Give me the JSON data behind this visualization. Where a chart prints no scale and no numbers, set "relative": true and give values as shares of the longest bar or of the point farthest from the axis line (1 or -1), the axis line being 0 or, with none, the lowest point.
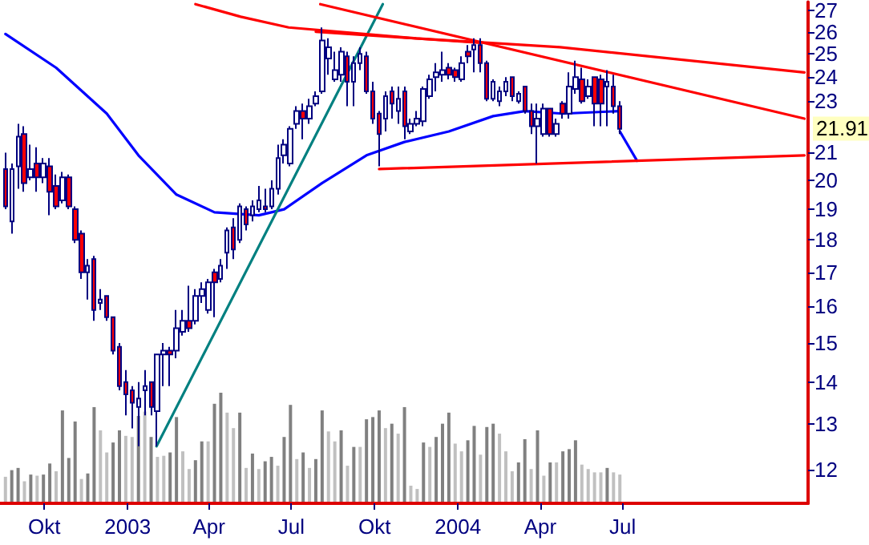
{
  "chart_data": [
    {
      "type": "candlestick",
      "log": true,
      "grid": false,
      "x": [
        "2002-08-19",
        "2002-08-26",
        "2002-09-02",
        "2002-09-09",
        "2002-09-16",
        "2002-09-23",
        "2002-09-30",
        "2002-10-07",
        "2002-10-14",
        "2002-10-21",
        "2002-10-28",
        "2002-11-04",
        "2002-11-11",
        "2002-11-18",
        "2002-11-25",
        "2002-12-02",
        "2002-12-09",
        "2002-12-16",
        "2002-12-23",
        "2002-12-30",
        "2003-01-06",
        "2003-01-13",
        "2003-01-20",
        "2003-01-27",
        "2003-02-03",
        "2003-02-10",
        "2003-02-17",
        "2003-02-24",
        "2003-03-03",
        "2003-03-10",
        "2003-03-17",
        "2003-03-24",
        "2003-03-31",
        "2003-04-07",
        "2003-04-14",
        "2003-04-21",
        "2003-04-28",
        "2003-05-05",
        "2003-05-12",
        "2003-05-19",
        "2003-05-26",
        "2003-06-02",
        "2003-06-09",
        "2003-06-16",
        "2003-06-23",
        "2003-06-30",
        "2003-07-07",
        "2003-07-14",
        "2003-07-21",
        "2003-07-28",
        "2003-08-04",
        "2003-08-11",
        "2003-08-18",
        "2003-08-25",
        "2003-09-01",
        "2003-09-08",
        "2003-09-15",
        "2003-09-22",
        "2003-09-29",
        "2003-10-06",
        "2003-10-13",
        "2003-10-20",
        "2003-10-27",
        "2003-11-03",
        "2003-11-10",
        "2003-11-17",
        "2003-11-24",
        "2003-12-01",
        "2003-12-08",
        "2003-12-15",
        "2003-12-22",
        "2003-12-29",
        "2004-01-05",
        "2004-01-12",
        "2004-01-19",
        "2004-01-26",
        "2004-02-02",
        "2004-02-09",
        "2004-02-16",
        "2004-02-23",
        "2004-03-01",
        "2004-03-08",
        "2004-03-15",
        "2004-03-22",
        "2004-03-29",
        "2004-04-05",
        "2004-04-12",
        "2004-04-19",
        "2004-04-26",
        "2004-05-03",
        "2004-05-10",
        "2004-05-17",
        "2004-05-24",
        "2004-05-31",
        "2004-06-07",
        "2004-06-14",
        "2004-06-21",
        "2004-06-28"
      ],
      "ohlc": [
        [
          20.4,
          21.0,
          19.0,
          19.1
        ],
        [
          18.6,
          20.6,
          18.2,
          20.4
        ],
        [
          20.5,
          22.1,
          19.7,
          21.6
        ],
        [
          21.7,
          22.0,
          19.6,
          19.9
        ],
        [
          20.1,
          21.3,
          20.0,
          20.4
        ],
        [
          20.6,
          21.2,
          19.6,
          20.1
        ],
        [
          20.1,
          20.8,
          19.9,
          20.6
        ],
        [
          20.5,
          20.8,
          18.8,
          19.6
        ],
        [
          19.8,
          20.2,
          19.0,
          19.1
        ],
        [
          19.3,
          20.3,
          19.2,
          20.1
        ],
        [
          20.1,
          20.2,
          19.0,
          19.1
        ],
        [
          19.0,
          19.1,
          17.9,
          18.0
        ],
        [
          18.2,
          18.3,
          16.8,
          17.0
        ],
        [
          17.0,
          17.4,
          16.2,
          17.2
        ],
        [
          17.4,
          17.5,
          15.6,
          15.9
        ],
        [
          16.1,
          16.5,
          15.9,
          16.2
        ],
        [
          16.3,
          16.3,
          15.6,
          15.7
        ],
        [
          15.7,
          15.7,
          14.7,
          14.8
        ],
        [
          14.9,
          15.0,
          13.8,
          13.9
        ],
        [
          14.0,
          14.3,
          13.2,
          13.7
        ],
        [
          13.8,
          13.9,
          12.9,
          13.5
        ],
        [
          13.4,
          14.0,
          12.5,
          13.6
        ],
        [
          13.8,
          14.3,
          13.2,
          13.9
        ],
        [
          14.0,
          14.0,
          13.2,
          13.4
        ],
        [
          13.3,
          14.7,
          12.5,
          14.7
        ],
        [
          14.7,
          15.0,
          13.9,
          14.8
        ],
        [
          14.8,
          14.9,
          13.9,
          14.7
        ],
        [
          14.8,
          15.9,
          14.6,
          15.4
        ],
        [
          15.3,
          15.9,
          15.2,
          15.6
        ],
        [
          15.6,
          16.6,
          15.3,
          15.4
        ],
        [
          15.6,
          16.5,
          15.5,
          16.3
        ],
        [
          16.3,
          16.7,
          16.1,
          16.5
        ],
        [
          15.9,
          16.8,
          15.8,
          16.7
        ],
        [
          17.0,
          17.1,
          15.7,
          16.7
        ],
        [
          16.8,
          17.4,
          16.7,
          17.2
        ],
        [
          17.6,
          18.4,
          17.1,
          18.3
        ],
        [
          18.4,
          18.7,
          17.4,
          17.7
        ],
        [
          18.0,
          19.2,
          17.9,
          19.1
        ],
        [
          19.0,
          19.1,
          18.3,
          18.5
        ],
        [
          18.8,
          19.3,
          18.6,
          19.1
        ],
        [
          19.0,
          19.8,
          18.9,
          19.3
        ],
        [
          19.1,
          19.7,
          18.9,
          19.0
        ],
        [
          19.1,
          20.0,
          19.0,
          19.7
        ],
        [
          19.7,
          21.3,
          19.5,
          20.8
        ],
        [
          20.9,
          21.5,
          20.6,
          21.3
        ],
        [
          20.6,
          22.0,
          20.5,
          21.9
        ],
        [
          22.1,
          22.8,
          21.9,
          22.6
        ],
        [
          22.6,
          22.9,
          21.5,
          22.3
        ],
        [
          22.3,
          23.1,
          22.1,
          22.8
        ],
        [
          22.9,
          23.4,
          22.8,
          23.2
        ],
        [
          23.4,
          26.2,
          23.3,
          25.6
        ],
        [
          24.8,
          25.7,
          24.1,
          25.3
        ],
        [
          23.9,
          25.1,
          23.8,
          24.3
        ],
        [
          24.1,
          25.3,
          23.8,
          25.1
        ],
        [
          24.9,
          25.1,
          22.8,
          23.8
        ],
        [
          23.8,
          24.9,
          22.8,
          24.6
        ],
        [
          24.6,
          25.3,
          24.3,
          25.0
        ],
        [
          24.9,
          25.1,
          23.3,
          23.4
        ],
        [
          23.4,
          23.8,
          22.1,
          22.3
        ],
        [
          22.5,
          22.6,
          20.5,
          21.7
        ],
        [
          22.3,
          23.4,
          21.8,
          23.2
        ],
        [
          23.4,
          23.6,
          22.3,
          22.9
        ],
        [
          22.6,
          23.6,
          22.1,
          23.1
        ],
        [
          23.4,
          23.6,
          21.5,
          22.0
        ],
        [
          21.8,
          22.3,
          21.7,
          22.1
        ],
        [
          22.1,
          22.6,
          22.0,
          22.3
        ],
        [
          22.2,
          23.6,
          22.0,
          23.5
        ],
        [
          23.2,
          24.1,
          23.1,
          23.9
        ],
        [
          24.0,
          24.6,
          23.4,
          24.2
        ],
        [
          24.1,
          25.1,
          23.8,
          24.3
        ],
        [
          24.4,
          24.6,
          23.9,
          24.1
        ],
        [
          24.3,
          24.4,
          23.8,
          24.0
        ],
        [
          23.9,
          24.9,
          23.8,
          24.6
        ],
        [
          25.1,
          25.4,
          24.6,
          24.9
        ],
        [
          25.2,
          25.7,
          24.2,
          25.4
        ],
        [
          25.4,
          25.7,
          24.2,
          24.6
        ],
        [
          24.6,
          24.7,
          23.0,
          23.1
        ],
        [
          23.1,
          23.9,
          23.0,
          23.8
        ],
        [
          23.0,
          23.6,
          22.8,
          23.4
        ],
        [
          23.4,
          24.0,
          23.2,
          23.8
        ],
        [
          24.0,
          24.0,
          23.0,
          23.2
        ],
        [
          23.0,
          23.4,
          22.9,
          23.3
        ],
        [
          23.6,
          23.6,
          22.5,
          22.6
        ],
        [
          22.6,
          22.9,
          21.7,
          22.0
        ],
        [
          22.0,
          22.9,
          20.6,
          22.3
        ],
        [
          21.7,
          22.9,
          21.6,
          22.7
        ],
        [
          22.7,
          22.7,
          21.6,
          21.7
        ],
        [
          21.7,
          22.3,
          21.6,
          22.1
        ],
        [
          22.9,
          23.0,
          22.3,
          22.5
        ],
        [
          22.5,
          24.2,
          22.3,
          23.6
        ],
        [
          23.5,
          24.7,
          23.3,
          24.0
        ],
        [
          23.9,
          24.4,
          22.9,
          23.0
        ],
        [
          23.2,
          23.9,
          23.1,
          23.6
        ],
        [
          24.0,
          24.0,
          22.0,
          22.9
        ],
        [
          23.9,
          24.1,
          22.0,
          22.9
        ],
        [
          23.6,
          24.3,
          22.0,
          23.8
        ],
        [
          23.6,
          24.1,
          22.5,
          22.8
        ],
        [
          22.8,
          23.0,
          21.7,
          21.9
        ]
      ],
      "series": [
        {
          "type": "line",
          "color": "#0000ff",
          "x": [
            "2002-08-19",
            "2002-10-14",
            "2002-12-09",
            "2003-01-13",
            "2003-02-24",
            "2003-04-07",
            "2003-05-26",
            "2003-06-23",
            "2003-08-04",
            "2003-09-22",
            "2003-11-03",
            "2003-12-22",
            "2004-02-09",
            "2004-03-15",
            "2004-04-26",
            "2004-06-28"
          ],
          "values": [
            25.9,
            24.4,
            22.5,
            20.9,
            19.5,
            18.9,
            18.8,
            19.0,
            19.9,
            20.9,
            21.4,
            21.8,
            22.4,
            22.6,
            22.5,
            22.6
          ]
        },
        {
          "type": "line",
          "color": "#0000ff",
          "x": [
            "2004-06-28",
            "2004-07-17"
          ],
          "values": [
            21.8,
            20.7
          ]
        },
        {
          "type": "line",
          "color": "#008080",
          "x": [
            "2003-02-02",
            "2003-10-10"
          ],
          "values": [
            12.5,
            27.3
          ]
        },
        {
          "type": "line",
          "color": "#ff0000",
          "x": [
            "2003-08-02",
            "2005-01-18"
          ],
          "values": [
            27.3,
            22.3
          ]
        },
        {
          "type": "line",
          "color": "#ff0000",
          "x": [
            "2003-03-17",
            "2003-05-06",
            "2003-06-28",
            "2003-11-16",
            "2004-04-23",
            "2005-01-18"
          ],
          "values": [
            27.3,
            26.7,
            26.2,
            25.7,
            25.3,
            24.2
          ]
        },
        {
          "type": "line",
          "color": "#ff0000",
          "x": [
            "2003-07-28",
            "2004-01-26"
          ],
          "values": [
            26.0,
            25.5
          ]
        },
        {
          "type": "line",
          "color": "#ff0000",
          "x": [
            "2003-10-06",
            "2005-01-18"
          ],
          "values": [
            20.4,
            20.9
          ]
        }
      ],
      "xlim": [
        "2002-08-13",
        "2005-01-22"
      ],
      "xticks": [
        {
          "value": "2002-10-01",
          "label": "Okt"
        },
        {
          "value": "2003-01-01",
          "label": "2003"
        },
        {
          "value": "2003-04-01",
          "label": "Apr"
        },
        {
          "value": "2003-07-01",
          "label": "Jul"
        },
        {
          "value": "2003-10-01",
          "label": "Okt"
        },
        {
          "value": "2004-01-01",
          "label": "2004"
        },
        {
          "value": "2004-04-01",
          "label": "Apr"
        },
        {
          "value": "2004-07-01",
          "label": "Jul"
        }
      ],
      "ylim": [
        11.3,
        27.4
      ],
      "yticks": [
        12,
        13,
        14,
        15,
        16,
        17,
        18,
        19,
        20,
        21,
        23,
        24,
        25,
        26,
        27
      ],
      "annotations": [
        {
          "text": "21.91",
          "y": 21.91
        }
      ]
    },
    {
      "type": "bar",
      "relative": true,
      "xlim": [
        "2002-08-13",
        "2005-01-22"
      ],
      "x": [
        "2002-08-19",
        "2002-08-26",
        "2002-09-02",
        "2002-09-09",
        "2002-09-16",
        "2002-09-23",
        "2002-09-30",
        "2002-10-07",
        "2002-10-14",
        "2002-10-21",
        "2002-10-28",
        "2002-11-04",
        "2002-11-11",
        "2002-11-18",
        "2002-11-25",
        "2002-12-02",
        "2002-12-09",
        "2002-12-16",
        "2002-12-23",
        "2002-12-30",
        "2003-01-06",
        "2003-01-13",
        "2003-01-20",
        "2003-01-27",
        "2003-02-03",
        "2003-02-10",
        "2003-02-17",
        "2003-02-24",
        "2003-03-03",
        "2003-03-10",
        "2003-03-17",
        "2003-03-24",
        "2003-03-31",
        "2003-04-07",
        "2003-04-14",
        "2003-04-21",
        "2003-04-28",
        "2003-05-05",
        "2003-05-12",
        "2003-05-19",
        "2003-05-26",
        "2003-06-02",
        "2003-06-09",
        "2003-06-16",
        "2003-06-23",
        "2003-06-30",
        "2003-07-07",
        "2003-07-14",
        "2003-07-21",
        "2003-07-28",
        "2003-08-04",
        "2003-08-11",
        "2003-08-18",
        "2003-08-25",
        "2003-09-01",
        "2003-09-08",
        "2003-09-15",
        "2003-09-22",
        "2003-09-29",
        "2003-10-06",
        "2003-10-13",
        "2003-10-20",
        "2003-10-27",
        "2003-11-03",
        "2003-11-10",
        "2003-11-17",
        "2003-11-24",
        "2003-12-01",
        "2003-12-08",
        "2003-12-15",
        "2003-12-22",
        "2003-12-29",
        "2004-01-05",
        "2004-01-12",
        "2004-01-19",
        "2004-01-26",
        "2004-02-02",
        "2004-02-09",
        "2004-02-16",
        "2004-02-23",
        "2004-03-01",
        "2004-03-08",
        "2004-03-15",
        "2004-03-22",
        "2004-03-29",
        "2004-04-05",
        "2004-04-12",
        "2004-04-19",
        "2004-04-26",
        "2004-05-03",
        "2004-05-10",
        "2004-05-17",
        "2004-05-24",
        "2004-05-31",
        "2004-06-07",
        "2004-06-14",
        "2004-06-21",
        "2004-06-28"
      ],
      "values": [
        0.24,
        0.3,
        0.32,
        0.2,
        0.26,
        0.25,
        0.26,
        0.36,
        0.29,
        0.84,
        0.41,
        0.74,
        0.22,
        0.27,
        0.87,
        0.66,
        0.46,
        0.55,
        0.66,
        0.61,
        0.6,
        0.79,
        0.83,
        0.6,
        0.42,
        0.43,
        0.46,
        0.78,
        0.47,
        0.31,
        0.39,
        0.56,
        0.56,
        0.9,
        1,
        0.82,
        0.68,
        0.82,
        0.32,
        0.45,
        0.31,
        0.38,
        0.42,
        0.34,
        0.6,
        0.89,
        0.4,
        0.46,
        0.32,
        0.4,
        0.84,
        0.65,
        0.56,
        0.66,
        0.34,
        0.51,
        0.51,
        0.76,
        0.78,
        0.84,
        0.68,
        0.72,
        0.63,
        0.87,
        0.16,
        0.13,
        0.55,
        0.51,
        0.6,
        0.72,
        0.82,
        0.54,
        0.47,
        0.57,
        0.7,
        0.44,
        0.69,
        0.72,
        0.63,
        0.47,
        0.29,
        0.37,
        0.58,
        0.31,
        0.66,
        0.25,
        0.37,
        0.37,
        0.47,
        0.49,
        0.57,
        0.35,
        0.31,
        0.28,
        0.28,
        0.32,
        0.28,
        0.26
      ],
      "colors": [
        "#c0c0c0",
        "#808080",
        "#808080",
        "#c0c0c0",
        "#808080",
        "#c0c0c0",
        "#808080",
        "#808080",
        "#c0c0c0",
        "#808080",
        "#808080",
        "#808080",
        "#c0c0c0",
        "#808080",
        "#808080",
        "#c0c0c0",
        "#c0c0c0",
        "#808080",
        "#808080",
        "#c0c0c0",
        "#c0c0c0",
        "#808080",
        "#c0c0c0",
        "#808080",
        "#c0c0c0",
        "#c0c0c0",
        "#808080",
        "#808080",
        "#c0c0c0",
        "#c0c0c0",
        "#808080",
        "#808080",
        "#c0c0c0",
        "#808080",
        "#808080",
        "#c0c0c0",
        "#c0c0c0",
        "#808080",
        "#c0c0c0",
        "#808080",
        "#c0c0c0",
        "#808080",
        "#808080",
        "#c0c0c0",
        "#808080",
        "#808080",
        "#c0c0c0",
        "#808080",
        "#c0c0c0",
        "#808080",
        "#808080",
        "#c0c0c0",
        "#c0c0c0",
        "#808080",
        "#c0c0c0",
        "#808080",
        "#c0c0c0",
        "#808080",
        "#808080",
        "#808080",
        "#c0c0c0",
        "#808080",
        "#c0c0c0",
        "#808080",
        "#c0c0c0",
        "#c0c0c0",
        "#808080",
        "#c0c0c0",
        "#808080",
        "#808080",
        "#808080",
        "#c0c0c0",
        "#c0c0c0",
        "#808080",
        "#808080",
        "#c0c0c0",
        "#808080",
        "#808080",
        "#c0c0c0",
        "#c0c0c0",
        "#c0c0c0",
        "#808080",
        "#808080",
        "#c0c0c0",
        "#808080",
        "#c0c0c0",
        "#808080",
        "#c0c0c0",
        "#808080",
        "#808080",
        "#808080",
        "#c0c0c0",
        "#c0c0c0",
        "#c0c0c0",
        "#c0c0c0",
        "#808080",
        "#c0c0c0",
        "#c0c0c0"
      ]
    }
  ]
}
